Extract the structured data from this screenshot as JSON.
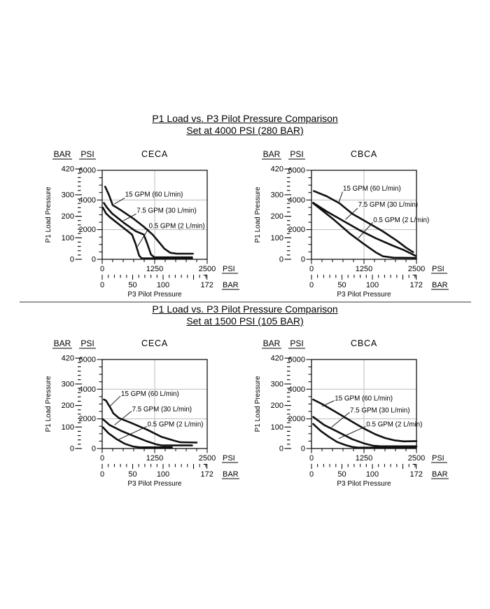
{
  "page": {
    "background": "#ffffff"
  },
  "colors": {
    "curve": "#101010",
    "grid": "#bdbdbd",
    "divider": "#9a9a9a",
    "axis_title": "#555555",
    "text": "#000000"
  },
  "sections": [
    {
      "title_line1": "P1 Load vs. P3 Pilot Pressure Comparison",
      "title_line2": "Set at 4000 PSI (280 BAR)"
    },
    {
      "title_line1": "P1 Load vs. P3 Pilot Pressure Comparison",
      "title_line2": "Set at 1500 PSI (105 BAR)"
    }
  ],
  "chart_data": [
    {
      "type": "line",
      "title": "CECA",
      "section": "Set at 4000 PSI (280 BAR)",
      "xlabel": "P3 Pilot Pressure",
      "ylabel": "P1 Load Pressure",
      "axes": {
        "x_psi_max": 2500,
        "y_psi_max": 6000,
        "x_psi_ticks": [
          0,
          1250,
          2500
        ],
        "x_psi_minor": 250,
        "y_psi_ticks": [
          0,
          2000,
          4000,
          6000
        ],
        "y_psi_minor": 500,
        "x_bar_ticks": [
          0,
          50,
          100,
          172
        ],
        "x_bar_minor": 10,
        "x_bar_end": 172,
        "y_bar_ticks": [
          0,
          100,
          200,
          300,
          420
        ],
        "y_bar_minor": 20,
        "y_bar_end": 420,
        "psi_per_bar": 14.5,
        "x_units": [
          "PSI",
          "BAR"
        ],
        "y_units": [
          "BAR",
          "PSI"
        ],
        "grid_x_psi": [
          1250
        ],
        "grid_y_psi": [
          2000,
          4000
        ]
      },
      "series": [
        {
          "name": "15 GPM (60 L/min)",
          "points": [
            [
              70,
              4900
            ],
            [
              160,
              4350
            ],
            [
              250,
              3650
            ],
            [
              440,
              3320
            ],
            [
              730,
              2770
            ],
            [
              980,
              2220
            ],
            [
              1200,
              1670
            ],
            [
              1340,
              1200
            ],
            [
              1480,
              720
            ],
            [
              1620,
              440
            ],
            [
              1780,
              380
            ],
            [
              2160,
              380
            ]
          ],
          "label_pos": [
            545,
            4400
          ],
          "leader": [
            535,
            4130,
            290,
            3730
          ]
        },
        {
          "name": "7.5 GPM (30 L/min)",
          "points": [
            [
              40,
              3800
            ],
            [
              110,
              3500
            ],
            [
              235,
              3090
            ],
            [
              515,
              2460
            ],
            [
              795,
              1900
            ],
            [
              990,
              1670
            ],
            [
              1075,
              1040
            ],
            [
              1160,
              330
            ],
            [
              1240,
              130
            ],
            [
              2140,
              130
            ]
          ],
          "label_pos": [
            820,
            3310
          ],
          "leader": [
            810,
            3060,
            505,
            2600
          ]
        },
        {
          "name": "0.5 GPM (2 L/min)",
          "points": [
            [
              15,
              3480
            ],
            [
              90,
              3100
            ],
            [
              180,
              2850
            ],
            [
              460,
              2220
            ],
            [
              710,
              1670
            ],
            [
              795,
              1040
            ],
            [
              880,
              250
            ],
            [
              940,
              60
            ],
            [
              2140,
              60
            ]
          ],
          "label_pos": [
            1110,
            2270
          ],
          "leader": [
            1100,
            2050,
            845,
            880
          ]
        }
      ]
    },
    {
      "type": "line",
      "title": "CBCA",
      "section": "Set at 4000 PSI (280 BAR)",
      "xlabel": "P3 Pilot Pressure",
      "ylabel": "P1 Load Pressure",
      "axes": {
        "x_psi_max": 2500,
        "y_psi_max": 6000,
        "x_psi_ticks": [
          0,
          1250,
          2500
        ],
        "x_psi_minor": 250,
        "y_psi_ticks": [
          0,
          2000,
          4000,
          6000
        ],
        "y_psi_minor": 500,
        "x_bar_ticks": [
          0,
          50,
          100,
          172
        ],
        "x_bar_minor": 10,
        "x_bar_end": 172,
        "y_bar_ticks": [
          0,
          100,
          200,
          300,
          420
        ],
        "y_bar_minor": 20,
        "y_bar_end": 420,
        "psi_per_bar": 14.5,
        "x_units": [
          "PSI",
          "BAR"
        ],
        "y_units": [
          "BAR",
          "PSI"
        ],
        "grid_x_psi": [
          1250
        ],
        "grid_y_psi": [
          2000,
          4000
        ]
      },
      "series": [
        {
          "name": "15 GPM (60 L/min)",
          "points": [
            [
              55,
              4600
            ],
            [
              360,
              4250
            ],
            [
              665,
              3780
            ],
            [
              970,
              3070
            ],
            [
              1360,
              2440
            ],
            [
              1695,
              1890
            ],
            [
              2030,
              1260
            ],
            [
              2250,
              790
            ],
            [
              2420,
              480
            ]
          ],
          "label_pos": [
            750,
            4800
          ],
          "leader": [
            740,
            4560,
            645,
            3790
          ]
        },
        {
          "name": "7.5 GPM (30 L/min)",
          "points": [
            [
              40,
              3810
            ],
            [
              360,
              3230
            ],
            [
              750,
              2600
            ],
            [
              1140,
              1970
            ],
            [
              1530,
              1420
            ],
            [
              1915,
              945
            ],
            [
              2195,
              630
            ],
            [
              2480,
              230
            ]
          ],
          "label_pos": [
            1110,
            3700
          ],
          "leader": [
            1100,
            3450,
            810,
            2680
          ]
        },
        {
          "name": "0.5 GPM (2 L/min)",
          "points": [
            [
              40,
              3780
            ],
            [
              530,
              2680
            ],
            [
              915,
              1730
            ],
            [
              1250,
              1025
            ],
            [
              1530,
              470
            ],
            [
              1700,
              210
            ],
            [
              1950,
              110
            ],
            [
              2480,
              90
            ]
          ],
          "label_pos": [
            1470,
            2680
          ],
          "leader": [
            1460,
            2480,
            1115,
            1430
          ]
        }
      ]
    },
    {
      "type": "line",
      "title": "CECA",
      "section": "Set at 1500 PSI (105 BAR)",
      "xlabel": "P3 Pilot Pressure",
      "ylabel": "P1 Load Pressure",
      "axes": {
        "x_psi_max": 2500,
        "y_psi_max": 6000,
        "x_psi_ticks": [
          0,
          1250,
          2500
        ],
        "x_psi_minor": 250,
        "y_psi_ticks": [
          0,
          2000,
          4000,
          6000
        ],
        "y_psi_minor": 500,
        "x_bar_ticks": [
          0,
          50,
          100,
          172
        ],
        "x_bar_minor": 10,
        "x_bar_end": 172,
        "y_bar_ticks": [
          0,
          100,
          200,
          300,
          420
        ],
        "y_bar_minor": 20,
        "y_bar_end": 420,
        "psi_per_bar": 14.5,
        "x_units": [
          "PSI",
          "BAR"
        ],
        "y_units": [
          "BAR",
          "PSI"
        ],
        "grid_x_psi": [
          1250
        ],
        "grid_y_psi": [
          2000,
          4000
        ]
      },
      "series": [
        {
          "name": "15 GPM (60 L/min)",
          "points": [
            [
              40,
              3300
            ],
            [
              90,
              3230
            ],
            [
              210,
              2680
            ],
            [
              265,
              2370
            ],
            [
              400,
              2050
            ],
            [
              680,
              1740
            ],
            [
              1075,
              1260
            ],
            [
              1410,
              790
            ],
            [
              1690,
              550
            ],
            [
              1860,
              420
            ],
            [
              2250,
              400
            ]
          ],
          "label_pos": [
            450,
            3700
          ],
          "leader": [
            435,
            3540,
            185,
            2850
          ]
        },
        {
          "name": "7.5 GPM (30 L/min)",
          "points": [
            [
              20,
              1970
            ],
            [
              180,
              1580
            ],
            [
              460,
              1180
            ],
            [
              795,
              790
            ],
            [
              1075,
              475
            ],
            [
              1300,
              270
            ],
            [
              1430,
              210
            ],
            [
              2140,
              210
            ]
          ],
          "label_pos": [
            710,
            2680
          ],
          "leader": [
            700,
            2520,
            295,
            1590
          ]
        },
        {
          "name": "0.5 GPM (2 L/min)",
          "points": [
            [
              20,
              1420
            ],
            [
              150,
              1030
            ],
            [
              345,
              630
            ],
            [
              540,
              320
            ],
            [
              740,
              130
            ],
            [
              900,
              80
            ],
            [
              1660,
              80
            ]
          ],
          "label_pos": [
            1075,
            1660
          ],
          "leader": [
            1065,
            1490,
            355,
            560
          ]
        }
      ]
    },
    {
      "type": "line",
      "title": "CBCA",
      "section": "Set at 1500 PSI (105 BAR)",
      "xlabel": "P3 Pilot Pressure",
      "ylabel": "P1 Load Pressure",
      "axes": {
        "x_psi_max": 2500,
        "y_psi_max": 6000,
        "x_psi_ticks": [
          0,
          1250,
          2500
        ],
        "x_psi_minor": 250,
        "y_psi_ticks": [
          0,
          2000,
          4000,
          6000
        ],
        "y_psi_minor": 500,
        "x_bar_ticks": [
          0,
          50,
          100,
          172
        ],
        "x_bar_minor": 10,
        "x_bar_end": 172,
        "y_bar_ticks": [
          0,
          100,
          200,
          300,
          420
        ],
        "y_bar_minor": 20,
        "y_bar_end": 420,
        "psi_per_bar": 14.5,
        "x_units": [
          "PSI",
          "BAR"
        ],
        "y_units": [
          "BAR",
          "PSI"
        ],
        "grid_x_psi": [
          1250
        ],
        "grid_y_psi": [
          2000,
          4000
        ]
      },
      "series": [
        {
          "name": "15 GPM (60 L/min)",
          "points": [
            [
              40,
              3300
            ],
            [
              250,
              3000
            ],
            [
              585,
              2450
            ],
            [
              915,
              1895
            ],
            [
              1250,
              1340
            ],
            [
              1530,
              945
            ],
            [
              1750,
              710
            ],
            [
              1970,
              555
            ],
            [
              2200,
              480
            ],
            [
              2500,
              500
            ]
          ],
          "label_pos": [
            555,
            3400
          ],
          "leader": [
            540,
            3230,
            255,
            2850
          ]
        },
        {
          "name": "7.5 GPM (30 L/min)",
          "points": [
            [
              40,
              2130
            ],
            [
              305,
              1580
            ],
            [
              640,
              1105
            ],
            [
              970,
              630
            ],
            [
              1250,
              345
            ],
            [
              1470,
              190
            ],
            [
              1650,
              150
            ],
            [
              2500,
              150
            ]
          ],
          "label_pos": [
            917,
            2600
          ],
          "leader": [
            905,
            2440,
            475,
            1430
          ]
        },
        {
          "name": "0.5 GPM (2 L/min)",
          "points": [
            [
              40,
              1660
            ],
            [
              220,
              1185
            ],
            [
              415,
              790
            ],
            [
              610,
              440
            ],
            [
              805,
              235
            ],
            [
              970,
              110
            ],
            [
              1100,
              60
            ],
            [
              2480,
              60
            ]
          ],
          "label_pos": [
            1305,
            1660
          ],
          "leader": [
            1295,
            1490,
            645,
            670
          ]
        }
      ]
    }
  ]
}
